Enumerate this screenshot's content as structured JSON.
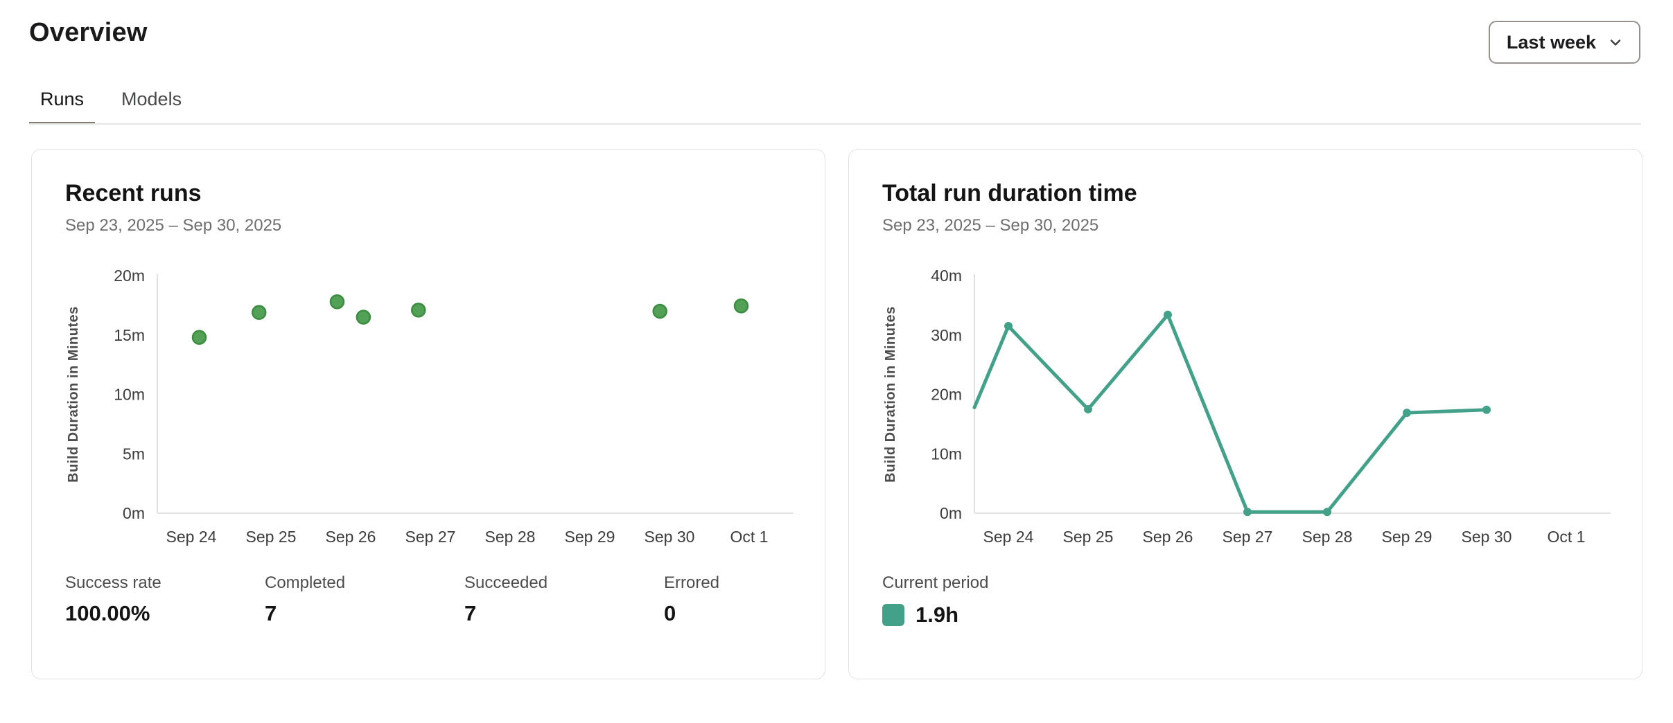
{
  "header": {
    "title": "Overview",
    "period_selector": {
      "value": "Last week",
      "icon": "chevron-down-icon"
    }
  },
  "tabs": [
    {
      "label": "Runs",
      "active": true
    },
    {
      "label": "Models",
      "active": false
    }
  ],
  "cards": [
    {
      "title": "Recent runs",
      "date_range": "Sep 23, 2025 – Sep 30, 2025",
      "stats": [
        {
          "label": "Success rate",
          "value": "100.00%"
        },
        {
          "label": "Completed",
          "value": "7"
        },
        {
          "label": "Succeeded",
          "value": "7"
        },
        {
          "label": "Errored",
          "value": "0"
        }
      ]
    },
    {
      "title": "Total run duration time",
      "date_range": "Sep 23, 2025 – Sep 30, 2025",
      "legend": {
        "label": "Current period",
        "value": "1.9h",
        "color": "#44a189"
      }
    }
  ],
  "chart_data": [
    {
      "type": "scatter",
      "title": "Recent runs",
      "ylabel": "Build Duration in Minutes",
      "ylim": [
        0,
        20
      ],
      "grid": false,
      "y_ticks": [
        {
          "v": 0,
          "label": "0m"
        },
        {
          "v": 5,
          "label": "5m"
        },
        {
          "v": 10,
          "label": "10m"
        },
        {
          "v": 15,
          "label": "15m"
        },
        {
          "v": 20,
          "label": "20m"
        }
      ],
      "x_ticks": [
        {
          "d": 0,
          "label": "Sep 24"
        },
        {
          "d": 1,
          "label": "Sep 25"
        },
        {
          "d": 2,
          "label": "Sep 26"
        },
        {
          "d": 3,
          "label": "Sep 27"
        },
        {
          "d": 4,
          "label": "Sep 28"
        },
        {
          "d": 5,
          "label": "Sep 29"
        },
        {
          "d": 6,
          "label": "Sep 30"
        },
        {
          "d": 7,
          "label": "Oct 1"
        }
      ],
      "point_color": "#52a156",
      "point_stroke": "#3b8d42",
      "points": [
        {
          "x": 0.1,
          "y": 14.8
        },
        {
          "x": 0.85,
          "y": 16.9
        },
        {
          "x": 1.83,
          "y": 17.8
        },
        {
          "x": 2.16,
          "y": 16.5
        },
        {
          "x": 2.85,
          "y": 17.1
        },
        {
          "x": 5.88,
          "y": 17.0
        },
        {
          "x": 6.9,
          "y": 17.45
        }
      ]
    },
    {
      "type": "line",
      "title": "Total run duration time",
      "ylabel": "Build Duration in Minutes",
      "ylim": [
        0,
        40
      ],
      "grid": false,
      "line_color": "#43a189",
      "y_ticks": [
        {
          "v": 0,
          "label": "0m"
        },
        {
          "v": 10,
          "label": "10m"
        },
        {
          "v": 20,
          "label": "20m"
        },
        {
          "v": 30,
          "label": "30m"
        },
        {
          "v": 40,
          "label": "40m"
        }
      ],
      "x_ticks": [
        {
          "d": 0,
          "label": "Sep 24"
        },
        {
          "d": 1,
          "label": "Sep 25"
        },
        {
          "d": 2,
          "label": "Sep 26"
        },
        {
          "d": 3,
          "label": "Sep 27"
        },
        {
          "d": 4,
          "label": "Sep 28"
        },
        {
          "d": 5,
          "label": "Sep 29"
        },
        {
          "d": 6,
          "label": "Sep 30"
        },
        {
          "d": 7,
          "label": "Oct 1"
        }
      ],
      "points": [
        {
          "x": -0.426,
          "y": 17.8,
          "marker": false
        },
        {
          "x": 0,
          "y": 31.5,
          "marker": true
        },
        {
          "x": 1,
          "y": 17.5,
          "marker": true
        },
        {
          "x": 2,
          "y": 33.4,
          "marker": true
        },
        {
          "x": 3,
          "y": 0.2,
          "marker": true
        },
        {
          "x": 4,
          "y": 0.2,
          "marker": true
        },
        {
          "x": 5,
          "y": 16.9,
          "marker": true
        },
        {
          "x": 6,
          "y": 17.4,
          "marker": true
        }
      ]
    }
  ]
}
